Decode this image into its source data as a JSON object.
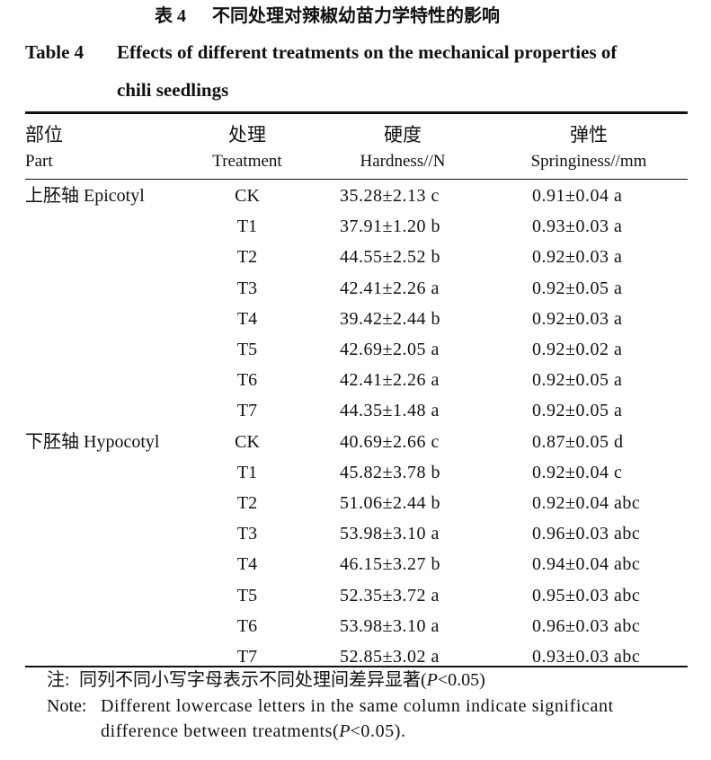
{
  "title_cn": {
    "label": "表 4",
    "text": "不同处理对辣椒幼苗力学特性的影响"
  },
  "title_en": {
    "label": "Table 4",
    "line1": "Effects of different treatments on the mechanical properties of",
    "line2": "chili seedlings"
  },
  "headers": [
    {
      "cn": "部位",
      "en": "Part"
    },
    {
      "cn": "处理",
      "en": "Treatment"
    },
    {
      "cn": "硬度",
      "en": "Hardness//N"
    },
    {
      "cn": "弹性",
      "en": "Springiness//mm"
    }
  ],
  "groups": [
    {
      "part": "上胚轴 Epicotyl",
      "rows": [
        [
          "CK",
          "35.28±2.13 c",
          "0.91±0.04 a"
        ],
        [
          "T1",
          "37.91±1.20 b",
          "0.93±0.03 a"
        ],
        [
          "T2",
          "44.55±2.52 b",
          "0.92±0.03 a"
        ],
        [
          "T3",
          "42.41±2.26 a",
          "0.92±0.05 a"
        ],
        [
          "T4",
          "39.42±2.44 b",
          "0.92±0.03 a"
        ],
        [
          "T5",
          "42.69±2.05 a",
          "0.92±0.02 a"
        ],
        [
          "T6",
          "42.41±2.26 a",
          "0.92±0.05 a"
        ],
        [
          "T7",
          "44.35±1.48 a",
          "0.92±0.05 a"
        ]
      ]
    },
    {
      "part": "下胚轴 Hypocotyl",
      "rows": [
        [
          "CK",
          "40.69±2.66 c",
          "0.87±0.05 d"
        ],
        [
          "T1",
          "45.82±3.78 b",
          "0.92±0.04 c"
        ],
        [
          "T2",
          "51.06±2.44 b",
          "0.92±0.04 abc"
        ],
        [
          "T3",
          "53.98±3.10 a",
          "0.96±0.03 abc"
        ],
        [
          "T4",
          "46.15±3.27 b",
          "0.94±0.04 abc"
        ],
        [
          "T5",
          "52.35±3.72 a",
          "0.95±0.03 abc"
        ],
        [
          "T6",
          "53.98±3.10 a",
          "0.96±0.03 abc"
        ],
        [
          "T7",
          "52.85±3.02 a",
          "0.93±0.03 abc"
        ]
      ]
    }
  ],
  "note_cn": {
    "label": "注:",
    "segments": [
      "同列不同小写字母表示不同处理间差异显著(",
      "P",
      "<0.05)"
    ]
  },
  "note_en": {
    "label": "Note:",
    "line1": "Different lowercase letters in the same column indicate significant",
    "line2_segments": [
      "difference between treatments(",
      "P",
      "<0.05)."
    ]
  }
}
